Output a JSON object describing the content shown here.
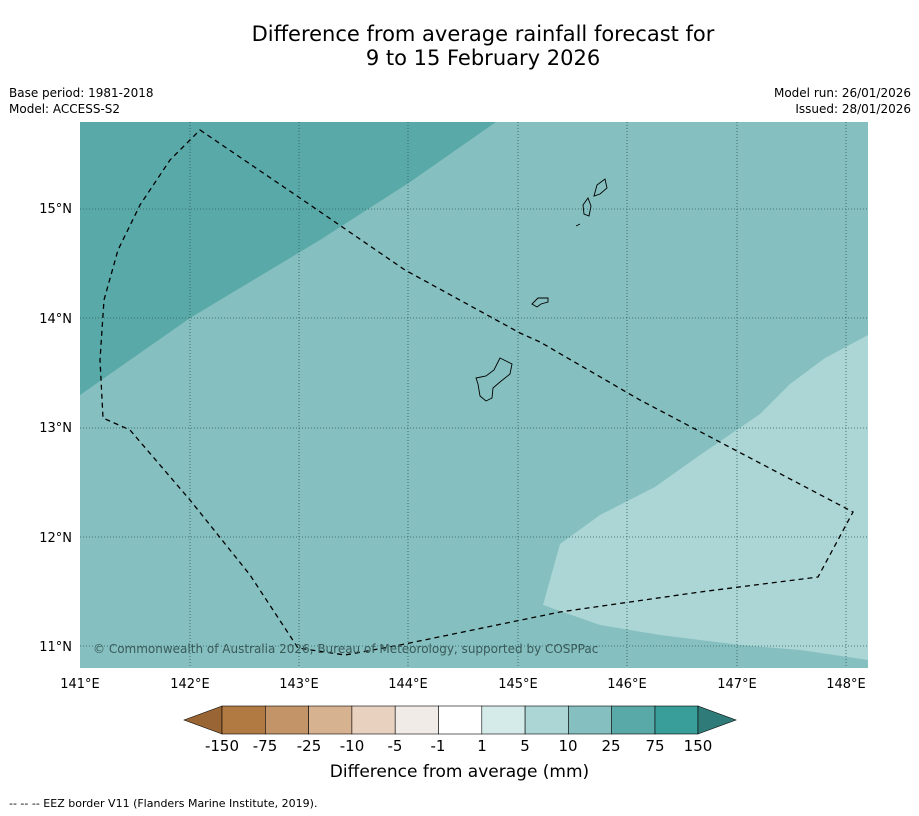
{
  "title": {
    "line1": "Difference from average rainfall forecast for",
    "line2": "9 to 15 February 2026"
  },
  "meta": {
    "base_period": "Base period: 1981-2018",
    "model": "Model: ACCESS-S2",
    "model_run": "Model run: 26/01/2026",
    "issued": "Issued: 28/01/2026"
  },
  "map": {
    "lon_range": [
      141,
      148.2
    ],
    "lat_range": [
      10.8,
      15.8
    ],
    "x_ticks": [
      "141°E",
      "142°E",
      "143°E",
      "144°E",
      "145°E",
      "146°E",
      "147°E",
      "148°E"
    ],
    "y_ticks": [
      "15°N",
      "14°N",
      "13°N",
      "12°N",
      "11°N"
    ],
    "copyright": "© Commonwealth of Australia 2026, Bureau of Meteorology, supported by COSPPac",
    "colors": {
      "cat_25_75": "#5aa9a9",
      "cat_10_25": "#85bfbf",
      "cat_5_10": "#acd5d5",
      "islands_outline": "#000000"
    }
  },
  "colorbar": {
    "ticks": [
      "-150",
      "-75",
      "-25",
      "-10",
      "-5",
      "-1",
      "1",
      "5",
      "10",
      "25",
      "75",
      "150"
    ],
    "colors": [
      "#9a6535",
      "#b07a42",
      "#c29468",
      "#d6b291",
      "#e8d1bf",
      "#f0ebe7",
      "#ffffff",
      "#d5ebe9",
      "#acd5d5",
      "#85bfbf",
      "#5aa9a9",
      "#399d9a",
      "#2e7b79"
    ],
    "label": "Difference from average (mm)"
  },
  "footer": {
    "legend_text": "--  --  -- EEZ border V11 (Flanders Marine Institute, 2019)."
  }
}
